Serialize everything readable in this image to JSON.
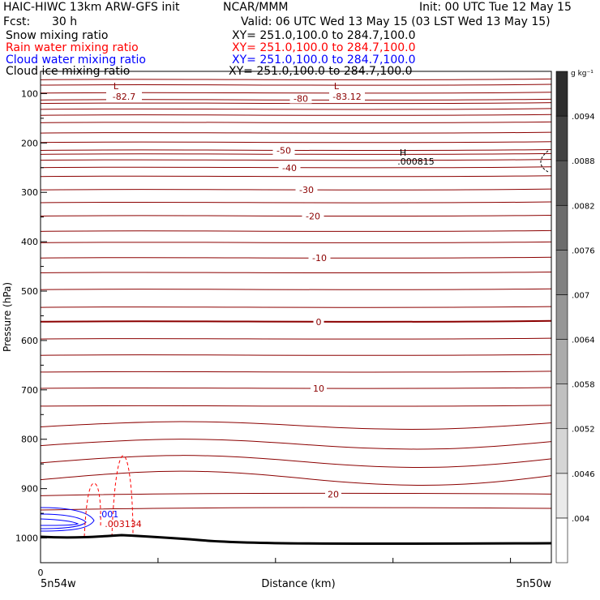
{
  "header": {
    "model": "HAIC-HIWC 13km ARW-GFS init",
    "org": "NCAR/MMM",
    "init": "Init: 00 UTC Tue 12 May 15",
    "fcst_label": "Fcst:",
    "fcst_value": "30 h",
    "valid": "Valid: 06 UTC Wed 13 May 15 (03 LST Wed 13 May 15)",
    "fields": [
      {
        "name": "Snow mixing ratio",
        "xy": "XY= 251.0,100.0 to 284.7,100.0",
        "color": "#000000"
      },
      {
        "name": "Rain water mixing ratio",
        "xy": "XY= 251.0,100.0 to 284.7,100.0",
        "color": "#ff0000"
      },
      {
        "name": "Cloud water mixing ratio",
        "xy": "XY= 251.0,100.0 to 284.7,100.0",
        "color": "#0000ff"
      },
      {
        "name": "Cloud ice mixing ratio",
        "xy": "XY= 251.0,100.0 to 284.7,100.0",
        "color": "#000000"
      }
    ]
  },
  "chart_data": {
    "type": "cross-section contour",
    "ylabel": "Pressure (hPa)",
    "xlabel": "Distance (km)",
    "y_ticks": [
      100,
      200,
      300,
      400,
      500,
      600,
      700,
      800,
      900,
      1000
    ],
    "ylim": [
      55,
      1050
    ],
    "y_reversed": true,
    "x_origin_label": "0",
    "x_end_labels": [
      "5n54w",
      "5n50w"
    ],
    "temperature_contours": {
      "color": "#8b0000",
      "labels": [
        {
          "text": "-80",
          "p": 110
        },
        {
          "text": "-50",
          "p": 215
        },
        {
          "text": "-40",
          "p": 250
        },
        {
          "text": "-30",
          "p": 295
        },
        {
          "text": "-20",
          "p": 348
        },
        {
          "text": "-10",
          "p": 433
        },
        {
          "text": "0",
          "p": 562
        },
        {
          "text": "10",
          "p": 697
        },
        {
          "text": "20",
          "p": 911
        }
      ],
      "extrema": [
        {
          "symbol": "L",
          "value": "-82.7"
        },
        {
          "symbol": "L",
          "value": "-83.12"
        }
      ]
    },
    "snow_max": {
      "symbol": "H",
      "value": ".000815"
    },
    "cloud_water_label": ".001",
    "rain_label": ".003134",
    "colorbar": {
      "unit": "g kg⁻¹",
      "ticks": [
        ".004",
        ".0046",
        ".0052",
        ".0058",
        ".0064",
        ".007",
        ".0076",
        ".0082",
        ".0088",
        ".0094"
      ]
    }
  }
}
